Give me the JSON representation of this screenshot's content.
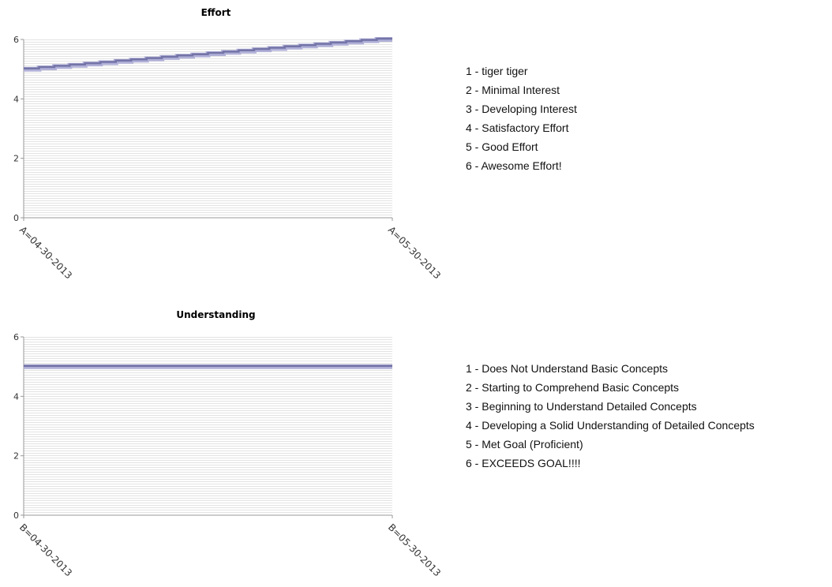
{
  "chart_data": [
    {
      "type": "line",
      "title": "Effort",
      "categories": [
        "A=04-30-2013",
        "A=05-30-2013"
      ],
      "series": [
        {
          "values": [
            5,
            6
          ]
        }
      ],
      "ylim": [
        0,
        6
      ],
      "yticks": [
        0,
        2,
        4,
        6
      ],
      "grid": true,
      "legend": [
        "1 - tiger tiger",
        "2 - Minimal Interest",
        "3 - Developing Interest",
        "4 - Satisfactory Effort",
        "5 - Good Effort",
        "6 - Awesome Effort!"
      ]
    },
    {
      "type": "line",
      "title": "Understanding",
      "categories": [
        "B=04-30-2013",
        "B=05-30-2013"
      ],
      "series": [
        {
          "values": [
            5,
            5
          ]
        }
      ],
      "ylim": [
        0,
        6
      ],
      "yticks": [
        0,
        2,
        4,
        6
      ],
      "grid": true,
      "legend": [
        "1 - Does Not Understand Basic Concepts",
        "2 - Starting to Comprehend Basic Concepts",
        "3 - Beginning to Understand Detailed Concepts",
        "4 - Developing a Solid Understanding of Detailed Concepts",
        "5 - Met Goal (Proficient)",
        "6 - EXCEEDS GOAL!!!!"
      ]
    }
  ],
  "colors": {
    "line": "#7474a8",
    "line_highlight": "#b0b0d8",
    "grid": "#e3e3e3",
    "axis": "#999999"
  }
}
